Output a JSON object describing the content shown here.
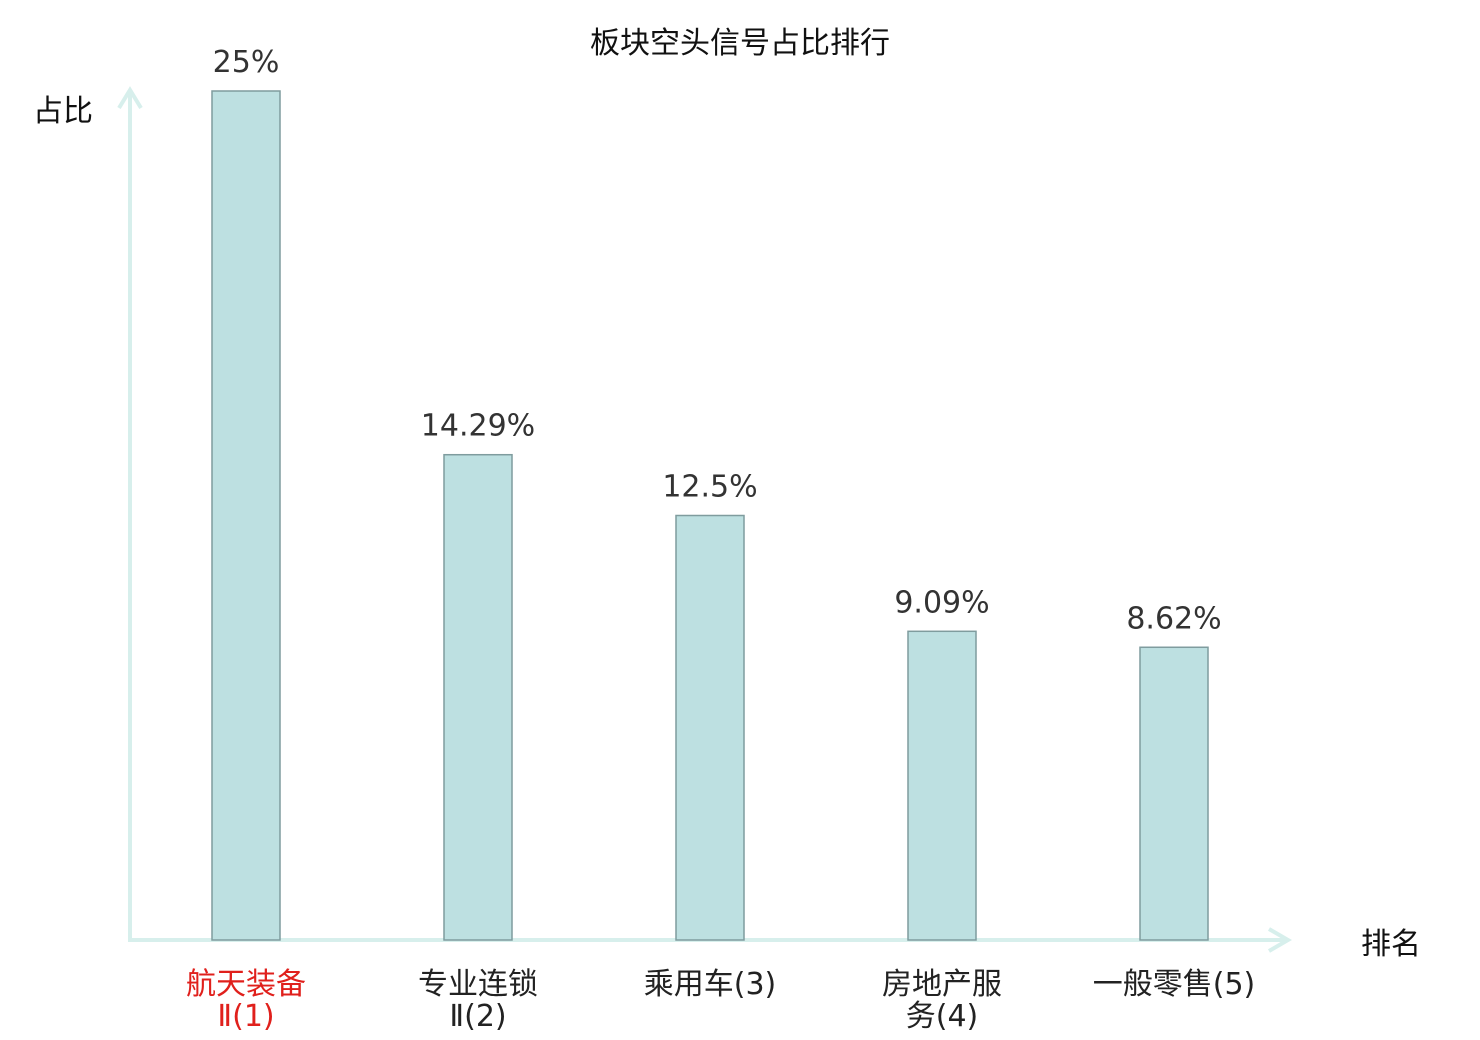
{
  "chart_data": {
    "type": "bar",
    "title": "板块空头信号占比排行",
    "xlabel": "排名",
    "ylabel": "占比",
    "categories": [
      [
        "航天装备",
        "Ⅱ(1)"
      ],
      [
        "专业连锁",
        "Ⅱ(2)"
      ],
      [
        "乘用车(3)"
      ],
      [
        "房地产服",
        "务(4)"
      ],
      [
        "一般零售(5)"
      ]
    ],
    "values": [
      25,
      14.29,
      12.5,
      9.09,
      8.62
    ],
    "value_labels": [
      "25%",
      "14.29%",
      "12.5%",
      "9.09%",
      "8.62%"
    ],
    "highlight_index": 0,
    "ylim": [
      0,
      25
    ],
    "grid": false,
    "colors": {
      "bar_fill": "#bde0e1",
      "bar_stroke": "#7f9c9e",
      "axis": "#d7efec",
      "highlight_text": "#e0201c"
    }
  }
}
